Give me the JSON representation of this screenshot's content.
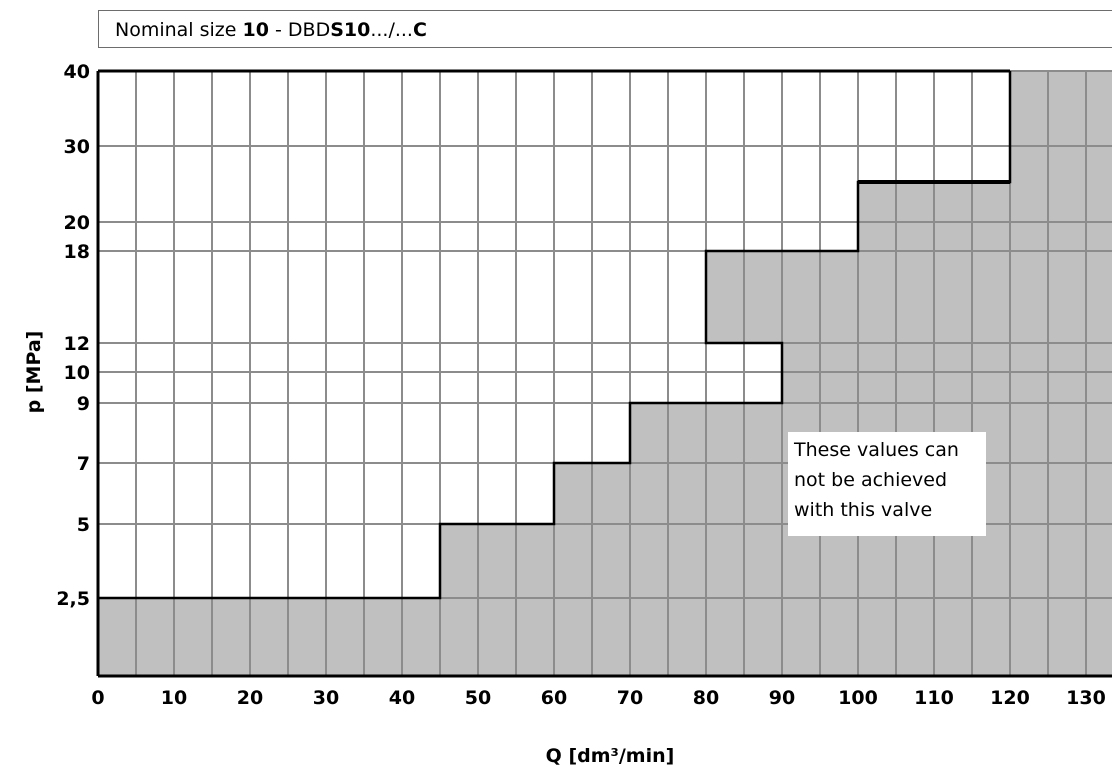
{
  "header": {
    "t1": "Nominal size ",
    "t2": "10",
    "t3": "  -  DBD",
    "t4": "S10",
    "t5": ".../...",
    "t6": "C"
  },
  "chart_data": {
    "type": "area",
    "xlabel": "Q [dm³/min]",
    "ylabel": "p [MPa]",
    "xlim": [
      0,
      135
    ],
    "ylim": [
      0,
      40
    ],
    "x_ticks": [
      0,
      10,
      20,
      30,
      40,
      50,
      60,
      70,
      80,
      90,
      100,
      110,
      120,
      130
    ],
    "y_ticks": [
      {
        "value": 2.5,
        "label": "2,5"
      },
      {
        "value": 5,
        "label": "5"
      },
      {
        "value": 7,
        "label": "7"
      },
      {
        "value": 9,
        "label": "9"
      },
      {
        "value": 10,
        "label": "10"
      },
      {
        "value": 12,
        "label": "12"
      },
      {
        "value": 18,
        "label": "18"
      },
      {
        "value": 20,
        "label": "20"
      },
      {
        "value": 30,
        "label": "30"
      },
      {
        "value": 40,
        "label": "40"
      }
    ],
    "minor_x_step": 5,
    "grid": true,
    "y_scale": "nonlinear (category-like tick spacing)",
    "boundary": [
      {
        "q": 0,
        "p": 2.5
      },
      {
        "q": 45,
        "p": 2.5
      },
      {
        "q": 45,
        "p": 5
      },
      {
        "q": 60,
        "p": 5
      },
      {
        "q": 60,
        "p": 7
      },
      {
        "q": 70,
        "p": 7
      },
      {
        "q": 70,
        "p": 9
      },
      {
        "q": 90,
        "p": 9
      },
      {
        "q": 90,
        "p": 12
      },
      {
        "q": 80,
        "p": 12
      },
      {
        "q": 80,
        "p": 18
      },
      {
        "q": 100,
        "p": 18
      },
      {
        "q": 100,
        "p": 25
      },
      {
        "q": 120,
        "p": 25
      },
      {
        "q": 120,
        "p": 40
      }
    ],
    "shaded_region": "values that can not be achieved",
    "annotation": "These values can\nnot be achieved\nwith this valve",
    "colors": {
      "shade": "#c0c0c0",
      "grid": "#8c8c8c",
      "line": "#000000"
    }
  }
}
